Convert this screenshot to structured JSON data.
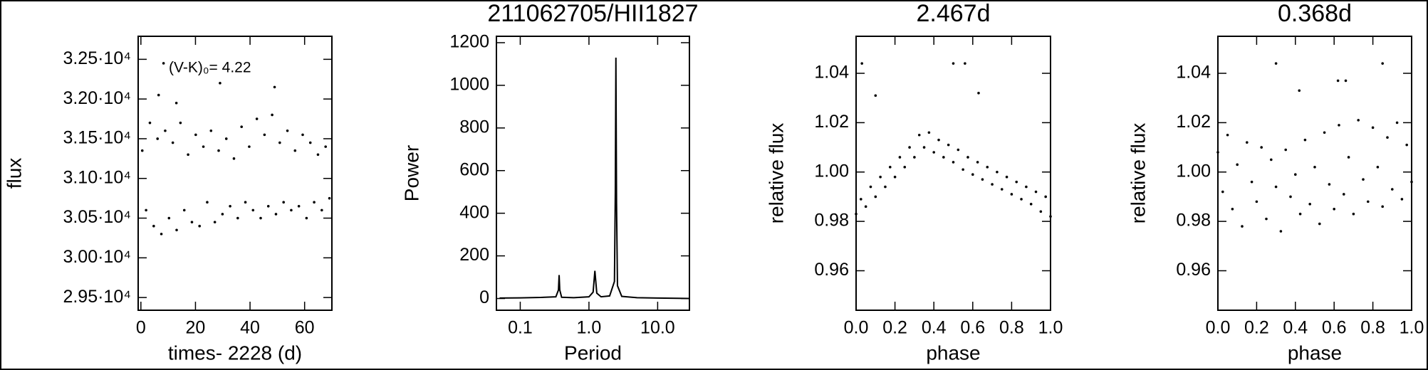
{
  "chart_data": [
    {
      "type": "scatter",
      "xlabel": "times- 2228 (d)",
      "ylabel": "flux",
      "annotation": "(V-K)₀= 4.22",
      "xlim": [
        -1,
        70
      ],
      "ylim": [
        29340,
        32790
      ],
      "xticks": [
        0,
        20,
        40,
        60
      ],
      "yticks": [
        {
          "value": 29500,
          "label": "2.95·10⁴"
        },
        {
          "value": 30000,
          "label": "3.00·10⁴"
        },
        {
          "value": 30500,
          "label": "3.05·10⁴"
        },
        {
          "value": 31000,
          "label": "3.10·10⁴"
        },
        {
          "value": 31500,
          "label": "3.15·10⁴"
        },
        {
          "value": 32000,
          "label": "3.20·10⁴"
        },
        {
          "value": 32500,
          "label": "3.25·10⁴"
        }
      ],
      "color": "#000000",
      "x": [
        0.5,
        1.9,
        3.3,
        4.7,
        6.1,
        7.5,
        8.9,
        10.3,
        11.7,
        13.1,
        14.5,
        15.9,
        17.3,
        18.7,
        20.1,
        21.5,
        22.9,
        24.3,
        25.7,
        27.1,
        28.5,
        29.9,
        31.3,
        32.7,
        34.1,
        35.5,
        36.9,
        38.3,
        39.7,
        41.1,
        42.5,
        43.9,
        45.3,
        46.7,
        48.1,
        49.5,
        50.9,
        52.3,
        53.7,
        55.1,
        56.5,
        57.9,
        59.3,
        60.7,
        62.1,
        63.5,
        64.9,
        66.3,
        67.7,
        69.1,
        6.5,
        8.3,
        13,
        49,
        29
      ],
      "values": [
        31350,
        30600,
        31700,
        30400,
        31500,
        30300,
        31600,
        30500,
        31450,
        30350,
        31700,
        30600,
        31300,
        30450,
        31550,
        30400,
        31400,
        30700,
        31600,
        30450,
        31350,
        30550,
        31500,
        30650,
        31250,
        30500,
        31650,
        30700,
        31400,
        30600,
        31750,
        30500,
        31550,
        30650,
        31800,
        30550,
        31450,
        30700,
        31600,
        30600,
        31350,
        30650,
        31550,
        30500,
        31450,
        30700,
        31300,
        30600,
        31400,
        30750,
        32050,
        32450,
        31950,
        32150,
        32200
      ]
    },
    {
      "type": "line",
      "title": "211062705/HII1827",
      "xlabel": "Period",
      "ylabel": "Power",
      "xlog": true,
      "xlim": [
        0.045,
        29
      ],
      "ylim": [
        -55,
        1230
      ],
      "xticks": [
        0.1,
        {
          "value": 1,
          "label": "1.0"
        },
        {
          "value": 10,
          "label": "10.0"
        }
      ],
      "yticks": [
        0,
        200,
        400,
        600,
        800,
        1000,
        1200
      ],
      "color": "#000000",
      "x": [
        0.05,
        0.1,
        0.2,
        0.33,
        0.36,
        0.368,
        0.376,
        0.4,
        0.6,
        1.0,
        1.15,
        1.22,
        1.3,
        1.5,
        2.0,
        2.35,
        2.42,
        2.467,
        2.52,
        2.6,
        3.0,
        5,
        10,
        20,
        29
      ],
      "values": [
        2,
        3,
        5,
        8,
        40,
        110,
        40,
        6,
        4,
        8,
        30,
        130,
        25,
        8,
        12,
        80,
        500,
        1130,
        450,
        60,
        10,
        4,
        2,
        1,
        0
      ]
    },
    {
      "type": "scatter",
      "title": "2.467d",
      "xlabel": "phase",
      "ylabel": "relative flux",
      "xlim": [
        0,
        1
      ],
      "ylim": [
        0.944,
        1.055
      ],
      "xticks": [
        {
          "value": 0,
          "label": "0.0"
        },
        0.2,
        0.4,
        0.6,
        0.8,
        {
          "value": 1,
          "label": "1.0"
        }
      ],
      "yticks": [
        0.96,
        0.98,
        {
          "value": 1,
          "label": "1.00"
        },
        1.02,
        1.04
      ],
      "color": "#000000",
      "x": [
        0,
        0.025,
        0.05,
        0.075,
        0.1,
        0.125,
        0.15,
        0.175,
        0.2,
        0.225,
        0.25,
        0.275,
        0.3,
        0.325,
        0.35,
        0.375,
        0.4,
        0.425,
        0.45,
        0.475,
        0.5,
        0.525,
        0.55,
        0.575,
        0.6,
        0.625,
        0.65,
        0.675,
        0.7,
        0.725,
        0.75,
        0.775,
        0.8,
        0.825,
        0.85,
        0.875,
        0.9,
        0.925,
        0.95,
        0.975,
        1.0,
        0.03,
        0.1,
        0.5,
        0.56,
        0.63
      ],
      "values": [
        0.983,
        0.989,
        0.986,
        0.994,
        0.99,
        0.998,
        0.994,
        1.002,
        0.998,
        1.006,
        1.002,
        1.01,
        1.006,
        1.015,
        1.01,
        1.016,
        1.008,
        1.013,
        1.006,
        1.011,
        1.004,
        1.009,
        1.001,
        1.006,
        0.999,
        1.004,
        0.997,
        1.002,
        0.995,
        1.0,
        0.993,
        0.998,
        0.991,
        0.996,
        0.989,
        0.994,
        0.987,
        0.992,
        0.984,
        0.99,
        0.982,
        1.044,
        1.031,
        1.044,
        1.044,
        1.032
      ]
    },
    {
      "type": "scatter",
      "title": "0.368d",
      "xlabel": "phase",
      "ylabel": "relative flux",
      "xlim": [
        0,
        1
      ],
      "ylim": [
        0.944,
        1.055
      ],
      "xticks": [
        {
          "value": 0,
          "label": "0.0"
        },
        0.2,
        0.4,
        0.6,
        0.8,
        {
          "value": 1,
          "label": "1.0"
        }
      ],
      "yticks": [
        0.96,
        0.98,
        {
          "value": 1,
          "label": "1.00"
        },
        1.02,
        1.04
      ],
      "color": "#000000",
      "x": [
        0,
        0.025,
        0.05,
        0.075,
        0.1,
        0.125,
        0.15,
        0.175,
        0.2,
        0.225,
        0.25,
        0.275,
        0.3,
        0.325,
        0.35,
        0.375,
        0.4,
        0.425,
        0.45,
        0.475,
        0.5,
        0.525,
        0.55,
        0.575,
        0.6,
        0.625,
        0.65,
        0.675,
        0.7,
        0.725,
        0.75,
        0.775,
        0.8,
        0.825,
        0.85,
        0.875,
        0.9,
        0.925,
        0.95,
        0.975,
        1.0,
        0.3,
        0.42,
        0.62,
        0.66,
        0.85
      ],
      "values": [
        1.008,
        0.992,
        1.015,
        0.985,
        1.003,
        0.978,
        1.012,
        0.996,
        0.988,
        1.01,
        0.981,
        1.005,
        0.994,
        0.976,
        1.009,
        0.99,
        0.999,
        0.983,
        1.013,
        0.987,
        1.002,
        0.979,
        1.016,
        0.995,
        0.985,
        1.019,
        0.991,
        1.006,
        0.983,
        1.021,
        0.997,
        0.988,
        1.018,
        1.002,
        0.986,
        1.014,
        0.993,
        1.02,
        0.989,
        1.011,
        0.996,
        1.044,
        1.033,
        1.037,
        1.037,
        1.044
      ]
    }
  ]
}
